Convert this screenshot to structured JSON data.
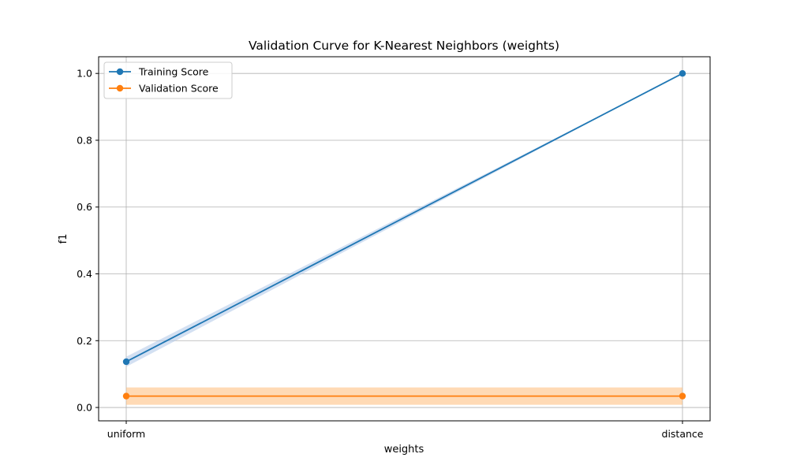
{
  "chart_data": {
    "type": "line",
    "title": "Validation Curve for K-Nearest Neighbors (weights)",
    "xlabel": "weights",
    "ylabel": "f1",
    "categories": [
      "uniform",
      "distance"
    ],
    "ylim": [
      -0.04,
      1.05
    ],
    "yticks": [
      0.0,
      0.2,
      0.4,
      0.6,
      0.8,
      1.0
    ],
    "ytick_labels": [
      "0.0",
      "0.2",
      "0.4",
      "0.6",
      "0.8",
      "1.0"
    ],
    "grid": true,
    "legend_position": "top-left",
    "series": [
      {
        "name": "Training Score",
        "color": "#1f77b4",
        "band_color": "#aec7e8",
        "values": [
          0.137,
          1.0
        ],
        "lower": [
          0.122,
          1.0
        ],
        "upper": [
          0.152,
          1.0
        ]
      },
      {
        "name": "Validation Score",
        "color": "#ff7f0e",
        "band_color": "#ffbb78",
        "values": [
          0.034,
          0.034
        ],
        "lower": [
          0.008,
          0.008
        ],
        "upper": [
          0.06,
          0.06
        ]
      }
    ]
  }
}
